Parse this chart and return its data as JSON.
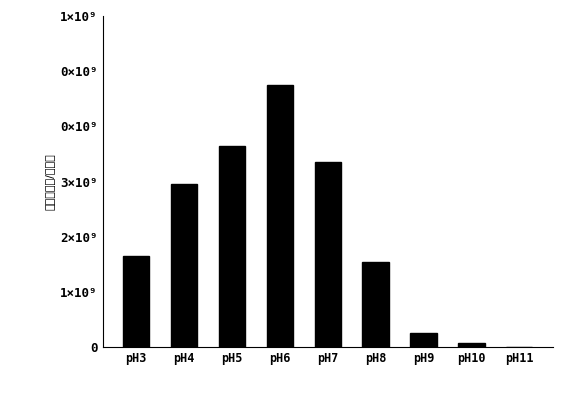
{
  "categories": [
    "pH3",
    "pH4",
    "pH5",
    "pH6",
    "pH7",
    "pH8",
    "pH9",
    "pH10",
    "pH11"
  ],
  "values": [
    1650000000.0,
    2950000000.0,
    3650000000.0,
    4750000000.0,
    3350000000.0,
    1550000000.0,
    250000000.0,
    80000000.0,
    5000000.0
  ],
  "bar_color": "#000000",
  "ylabel": "菌子量（个/平板）",
  "ylim": [
    0,
    6000000000.0
  ],
  "yticks": [
    0,
    1000000000.0,
    2000000000.0,
    3000000000.0,
    4000000000.0,
    5000000000.0,
    6000000000.0
  ],
  "background_color": "#ffffff",
  "bar_width": 0.55,
  "figsize": [
    5.7,
    3.99
  ],
  "dpi": 100
}
